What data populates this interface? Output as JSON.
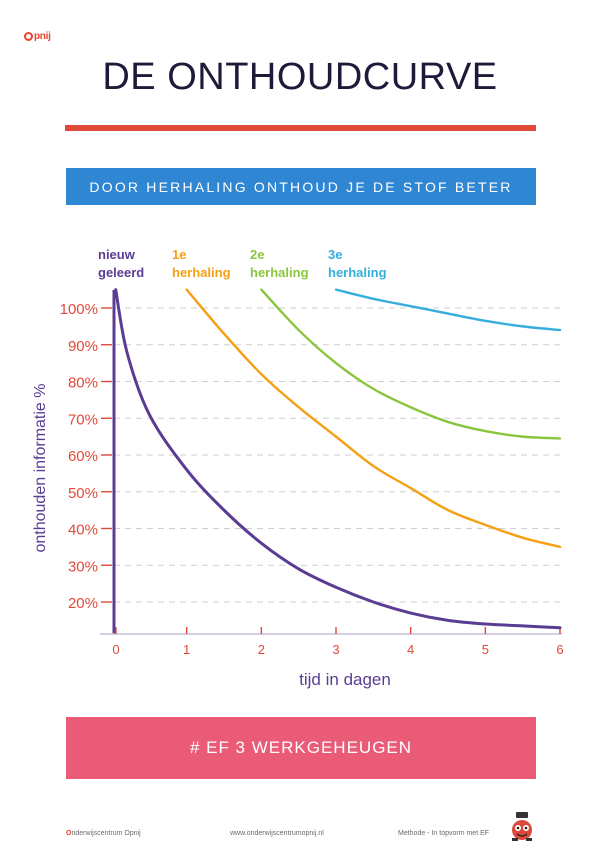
{
  "header": {
    "logo_text": "pnij",
    "title": "DE ONTHOUDCURVE",
    "banner": "DOOR HERHALING ONTHOUD JE DE STOF BETER"
  },
  "chart_data": {
    "type": "line",
    "xlabel": "tijd in dagen",
    "ylabel": "onthouden informatie %",
    "x_ticks": [
      "0",
      "1",
      "2",
      "3",
      "4",
      "5",
      "6"
    ],
    "y_ticks": [
      "20%",
      "30%",
      "40%",
      "50%",
      "60%",
      "70%",
      "80%",
      "90%",
      "100%"
    ],
    "xlim": [
      0,
      6
    ],
    "ylim": [
      10,
      100
    ],
    "grid": "dashed horizontal",
    "series": [
      {
        "name": "nieuw geleerd",
        "label_lines": [
          "nieuw",
          "geleerd"
        ],
        "color": "#5a3d93",
        "points": [
          [
            0.05,
            105
          ],
          [
            0.2,
            88
          ],
          [
            0.5,
            71
          ],
          [
            1.0,
            56
          ],
          [
            1.5,
            45
          ],
          [
            2.0,
            36
          ],
          [
            2.5,
            29
          ],
          [
            3.0,
            24
          ],
          [
            3.5,
            20
          ],
          [
            4.0,
            17
          ],
          [
            4.5,
            15
          ],
          [
            5.0,
            14
          ],
          [
            5.5,
            13.5
          ],
          [
            6.0,
            13
          ]
        ]
      },
      {
        "name": "1e herhaling",
        "label_lines": [
          "1e",
          "herhaling"
        ],
        "color": "#f5a012",
        "points": [
          [
            1.0,
            105
          ],
          [
            1.5,
            93
          ],
          [
            2.0,
            82
          ],
          [
            2.5,
            73
          ],
          [
            3.0,
            65
          ],
          [
            3.5,
            57
          ],
          [
            4.0,
            51
          ],
          [
            4.5,
            45
          ],
          [
            5.0,
            41
          ],
          [
            5.5,
            37.5
          ],
          [
            6.0,
            35
          ]
        ]
      },
      {
        "name": "2e herhaling",
        "label_lines": [
          "2e",
          "herhaling"
        ],
        "color": "#8bc53f",
        "points": [
          [
            2.0,
            105
          ],
          [
            2.5,
            94
          ],
          [
            3.0,
            85
          ],
          [
            3.5,
            78
          ],
          [
            4.0,
            73
          ],
          [
            4.5,
            69
          ],
          [
            5.0,
            66.5
          ],
          [
            5.5,
            65
          ],
          [
            6.0,
            64.5
          ]
        ]
      },
      {
        "name": "3e herhaling",
        "label_lines": [
          "3e",
          "herhaling"
        ],
        "color": "#35aedb",
        "points": [
          [
            3.0,
            105
          ],
          [
            3.5,
            102.5
          ],
          [
            4.0,
            100.5
          ],
          [
            4.5,
            98.5
          ],
          [
            5.0,
            96.5
          ],
          [
            5.5,
            95
          ],
          [
            6.0,
            94
          ]
        ]
      }
    ]
  },
  "footer": {
    "tag": "# EF 3   WERKGEHEUGEN",
    "org_initial": "O",
    "org_rest": "nderwijscentrum Opnij",
    "website": "www.onderwijscentrumopnij.nl",
    "method": "Methode - In topvorm met EF"
  },
  "colors": {
    "accent_red": "#e0493a",
    "banner_blue": "#2f86d3",
    "footer_pink": "#ea5b78",
    "axis_purple": "#5a3d93",
    "tick_red": "#e0493a"
  }
}
